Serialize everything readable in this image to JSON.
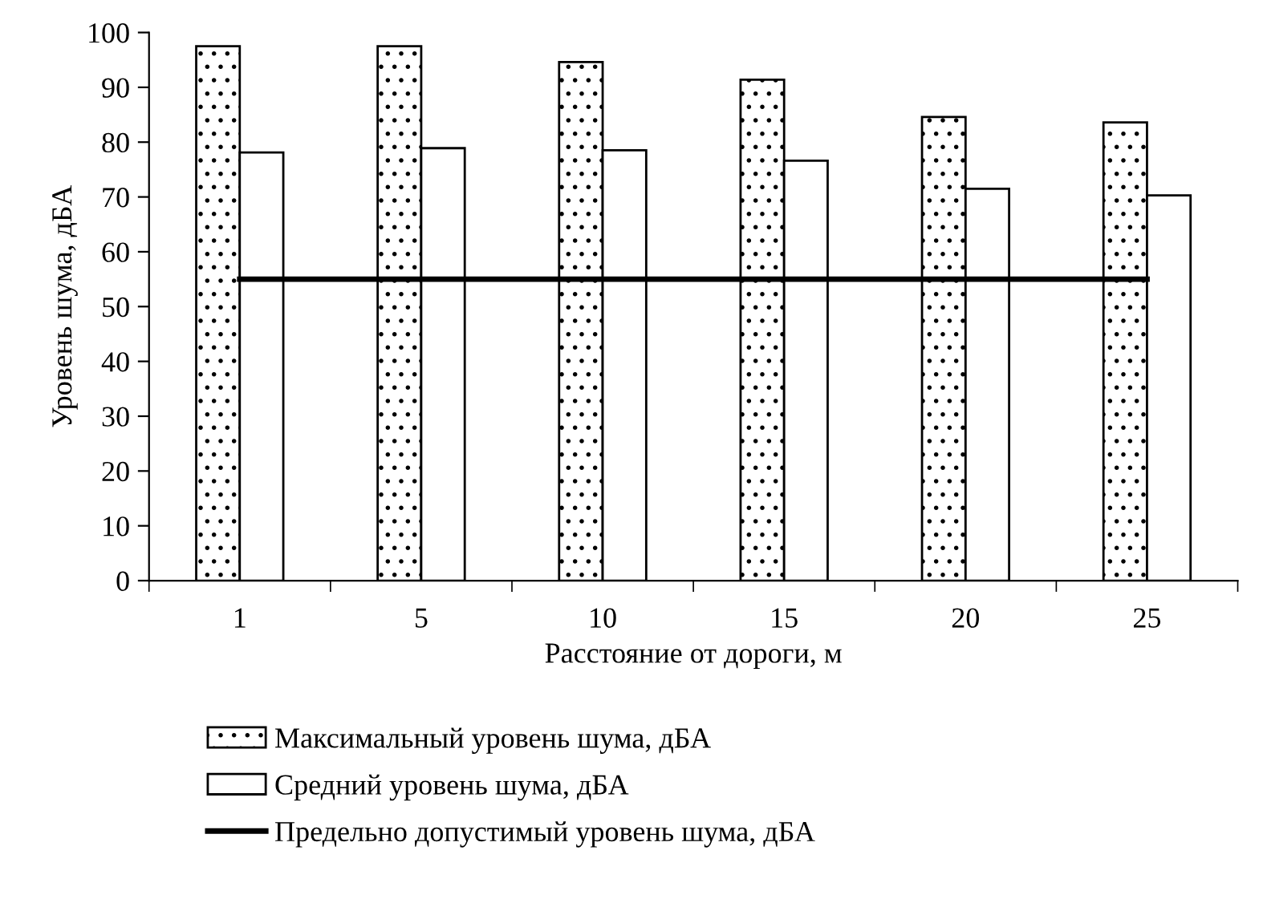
{
  "chart_data": {
    "type": "bar",
    "xlabel": "Расстояние от дороги, м",
    "ylabel": "Уровень шума, дБА",
    "categories": [
      "1",
      "5",
      "10",
      "15",
      "20",
      "25"
    ],
    "series": [
      {
        "name": "Максимальный уровень шума, дБА",
        "color": "#000000",
        "values": [
          97.5,
          97.5,
          94.6,
          91.4,
          84.6,
          83.6
        ]
      },
      {
        "name": "Средний уровень шума, дБА",
        "color": "#ffffff",
        "values": [
          78.1,
          78.9,
          78.5,
          76.6,
          71.5,
          70.3
        ]
      },
      {
        "name": "Предельно допустимый уровень шума, дБА",
        "type": "line",
        "color": "#000000",
        "values": [
          55,
          55,
          55,
          55,
          55,
          55
        ]
      }
    ],
    "ylim": [
      0,
      100
    ],
    "yticks": [
      0,
      10,
      20,
      30,
      40,
      50,
      60,
      70,
      80,
      90,
      100
    ],
    "grid": false,
    "legend": "bottom"
  }
}
